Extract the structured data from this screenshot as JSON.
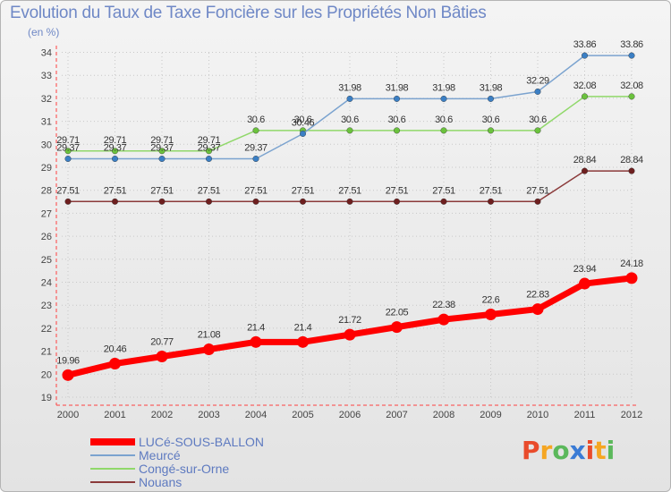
{
  "title": "Evolution du Taux de Taxe Foncière sur les Propriétés Non Bâties",
  "subtitle": "(en %)",
  "logo": {
    "text": "Proxiti",
    "letters": [
      {
        "ch": "P",
        "color": "#e94b2b"
      },
      {
        "ch": "r",
        "color": "#f5a623"
      },
      {
        "ch": "o",
        "color": "#5bb85b"
      },
      {
        "ch": "x",
        "color": "#3a7bd5"
      },
      {
        "ch": "i",
        "color": "#e94b2b"
      },
      {
        "ch": "t",
        "color": "#f5a623"
      },
      {
        "ch": "i",
        "color": "#5bb85b"
      }
    ]
  },
  "chart_data": {
    "type": "line",
    "title": "Evolution du Taux de Taxe Foncière sur les Propriétés Non Bâties",
    "ylabel": "(en %)",
    "xlabel": "",
    "ylim": [
      19,
      34
    ],
    "yticks": [
      19,
      20,
      21,
      22,
      23,
      24,
      25,
      26,
      27,
      28,
      29,
      30,
      31,
      32,
      33,
      34
    ],
    "categories": [
      "2000",
      "2001",
      "2002",
      "2003",
      "2004",
      "2005",
      "2006",
      "2007",
      "2008",
      "2009",
      "2010",
      "2011",
      "2012"
    ],
    "grid": true,
    "legend": "bottom-left",
    "series": [
      {
        "name": "LUCé-SOUS-BALLON",
        "color": "#ff0000",
        "marker": "#ff0000",
        "width": 7,
        "values": [
          19.96,
          20.46,
          20.77,
          21.08,
          21.4,
          21.4,
          21.72,
          22.05,
          22.38,
          22.6,
          22.83,
          23.94,
          24.18
        ],
        "labels": [
          "19.96",
          "20.46",
          "20.77",
          "21.08",
          "21.4",
          "21.4",
          "21.72",
          "22.05",
          "22.38",
          "22.6",
          "22.83",
          "23.94",
          "24.18"
        ]
      },
      {
        "name": "Meurcé",
        "color": "#7ba3cf",
        "marker": "#3b7fc4",
        "width": 1.5,
        "values": [
          29.37,
          29.37,
          29.37,
          29.37,
          29.37,
          30.46,
          31.98,
          31.98,
          31.98,
          31.98,
          32.29,
          33.86,
          33.86
        ],
        "labels": [
          "29.37",
          "29.37",
          "29.37",
          "29.37",
          "29.37",
          "30.46",
          "31.98",
          "31.98",
          "31.98",
          "31.98",
          "32.29",
          "33.86",
          "33.86"
        ]
      },
      {
        "name": "Congé-sur-Orne",
        "color": "#90d86a",
        "marker": "#6bc23d",
        "width": 1.5,
        "values": [
          29.71,
          29.71,
          29.71,
          29.71,
          30.6,
          30.6,
          30.6,
          30.6,
          30.6,
          30.6,
          30.6,
          32.08,
          32.08
        ],
        "labels": [
          "29.71",
          "29.71",
          "29.71",
          "29.71",
          "30.6",
          "30.6",
          "30.6",
          "30.6",
          "30.6",
          "30.6",
          "30.6",
          "32.08",
          "32.08"
        ]
      },
      {
        "name": "Nouans",
        "color": "#8b3a3a",
        "marker": "#6e1f1f",
        "width": 1.5,
        "values": [
          27.51,
          27.51,
          27.51,
          27.51,
          27.51,
          27.51,
          27.51,
          27.51,
          27.51,
          27.51,
          27.51,
          28.84,
          28.84
        ],
        "labels": [
          "27.51",
          "27.51",
          "27.51",
          "27.51",
          "27.51",
          "27.51",
          "27.51",
          "27.51",
          "27.51",
          "27.51",
          "27.51",
          "28.84",
          "28.84"
        ]
      }
    ]
  }
}
